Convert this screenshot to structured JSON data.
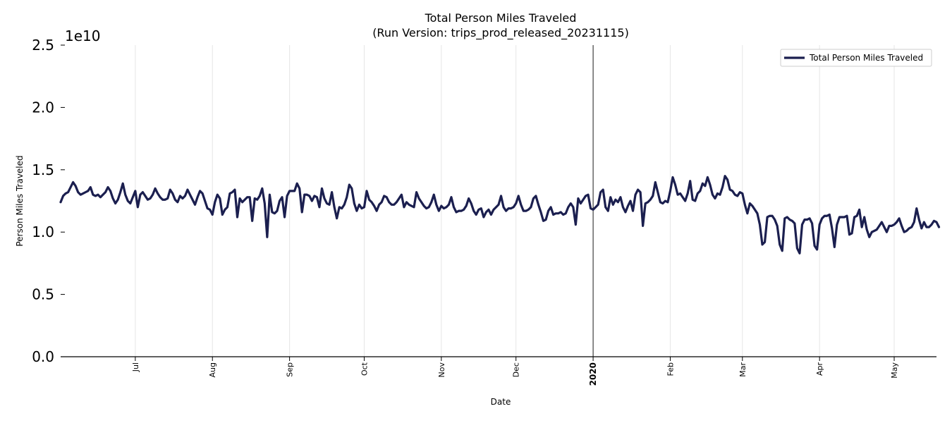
{
  "chart_data": {
    "type": "line",
    "title": "Total Person Miles Traveled",
    "subtitle": "(Run Version: trips_prod_released_20231115)",
    "xlabel": "Date",
    "ylabel": "Person Miles Traveled",
    "y_exponent_label": "1e10",
    "ylim": [
      0,
      2.5
    ],
    "yticks": [
      "0.0",
      "0.5",
      "1.0",
      "1.5",
      "2.0",
      "2.5"
    ],
    "xlim_days": [
      0,
      352
    ],
    "xticks": [
      {
        "label": "Jul",
        "day": 30
      },
      {
        "label": "Aug",
        "day": 61
      },
      {
        "label": "Sep",
        "day": 92
      },
      {
        "label": "Oct",
        "day": 122
      },
      {
        "label": "Nov",
        "day": 153
      },
      {
        "label": "Dec",
        "day": 183
      },
      {
        "label": "2020",
        "day": 214,
        "bold": true,
        "major": true
      },
      {
        "label": "Feb",
        "day": 245
      },
      {
        "label": "Mar",
        "day": 274
      },
      {
        "label": "Apr",
        "day": 305
      },
      {
        "label": "May",
        "day": 335
      }
    ],
    "grid": "vertical",
    "legend": {
      "placement": "top-right",
      "entries": [
        "Total Person Miles Traveled"
      ]
    },
    "series": [
      {
        "name": "Total Person Miles Traveled",
        "color": "#1b1f4f",
        "x_start_date": "2019-06-01",
        "step_days": 1,
        "values_1e10": [
          1.24,
          1.29,
          1.31,
          1.32,
          1.36,
          1.4,
          1.37,
          1.32,
          1.3,
          1.31,
          1.32,
          1.33,
          1.36,
          1.3,
          1.29,
          1.3,
          1.28,
          1.3,
          1.32,
          1.36,
          1.33,
          1.27,
          1.23,
          1.26,
          1.32,
          1.39,
          1.3,
          1.25,
          1.23,
          1.28,
          1.33,
          1.2,
          1.3,
          1.32,
          1.29,
          1.26,
          1.27,
          1.3,
          1.35,
          1.31,
          1.28,
          1.26,
          1.26,
          1.27,
          1.34,
          1.31,
          1.26,
          1.24,
          1.29,
          1.27,
          1.29,
          1.34,
          1.3,
          1.26,
          1.22,
          1.28,
          1.33,
          1.31,
          1.25,
          1.19,
          1.18,
          1.14,
          1.24,
          1.3,
          1.27,
          1.14,
          1.18,
          1.2,
          1.31,
          1.32,
          1.34,
          1.12,
          1.27,
          1.24,
          1.26,
          1.28,
          1.28,
          1.09,
          1.27,
          1.26,
          1.29,
          1.35,
          1.23,
          0.96,
          1.3,
          1.16,
          1.15,
          1.17,
          1.25,
          1.28,
          1.12,
          1.29,
          1.33,
          1.33,
          1.33,
          1.39,
          1.35,
          1.16,
          1.3,
          1.3,
          1.29,
          1.25,
          1.29,
          1.28,
          1.2,
          1.35,
          1.27,
          1.23,
          1.22,
          1.32,
          1.2,
          1.11,
          1.2,
          1.19,
          1.22,
          1.28,
          1.38,
          1.35,
          1.23,
          1.17,
          1.22,
          1.19,
          1.2,
          1.33,
          1.26,
          1.24,
          1.21,
          1.17,
          1.22,
          1.24,
          1.29,
          1.28,
          1.24,
          1.22,
          1.22,
          1.24,
          1.27,
          1.3,
          1.2,
          1.24,
          1.22,
          1.21,
          1.2,
          1.32,
          1.27,
          1.24,
          1.21,
          1.19,
          1.2,
          1.24,
          1.3,
          1.22,
          1.17,
          1.21,
          1.19,
          1.2,
          1.22,
          1.28,
          1.2,
          1.16,
          1.17,
          1.17,
          1.18,
          1.21,
          1.27,
          1.23,
          1.17,
          1.14,
          1.18,
          1.19,
          1.12,
          1.16,
          1.18,
          1.14,
          1.18,
          1.2,
          1.22,
          1.29,
          1.2,
          1.17,
          1.19,
          1.19,
          1.2,
          1.23,
          1.29,
          1.22,
          1.17,
          1.17,
          1.18,
          1.2,
          1.27,
          1.29,
          1.22,
          1.16,
          1.09,
          1.1,
          1.17,
          1.2,
          1.14,
          1.15,
          1.15,
          1.16,
          1.14,
          1.15,
          1.2,
          1.23,
          1.2,
          1.06,
          1.27,
          1.23,
          1.26,
          1.29,
          1.3,
          1.19,
          1.18,
          1.2,
          1.22,
          1.32,
          1.34,
          1.2,
          1.17,
          1.28,
          1.22,
          1.26,
          1.24,
          1.28,
          1.2,
          1.16,
          1.21,
          1.25,
          1.17,
          1.3,
          1.34,
          1.32,
          1.05,
          1.23,
          1.24,
          1.26,
          1.29,
          1.4,
          1.32,
          1.24,
          1.23,
          1.25,
          1.24,
          1.33,
          1.44,
          1.38,
          1.3,
          1.31,
          1.28,
          1.25,
          1.31,
          1.41,
          1.26,
          1.25,
          1.31,
          1.33,
          1.39,
          1.37,
          1.44,
          1.38,
          1.3,
          1.27,
          1.31,
          1.3,
          1.36,
          1.45,
          1.42,
          1.34,
          1.33,
          1.3,
          1.29,
          1.32,
          1.31,
          1.22,
          1.15,
          1.23,
          1.21,
          1.18,
          1.15,
          1.06,
          0.9,
          0.92,
          1.12,
          1.13,
          1.13,
          1.1,
          1.05,
          0.9,
          0.85,
          1.11,
          1.12,
          1.1,
          1.09,
          1.07,
          0.87,
          0.83,
          1.06,
          1.1,
          1.1,
          1.11,
          1.07,
          0.89,
          0.86,
          1.06,
          1.11,
          1.13,
          1.13,
          1.14,
          1.03,
          0.88,
          1.06,
          1.12,
          1.12,
          1.12,
          1.13,
          0.98,
          0.99,
          1.12,
          1.13,
          1.18,
          1.04,
          1.12,
          1.02,
          0.96,
          1.0,
          1.01,
          1.02,
          1.05,
          1.08,
          1.04,
          1.0,
          1.05,
          1.05,
          1.06,
          1.08,
          1.11,
          1.05,
          1.0,
          1.01,
          1.03,
          1.04,
          1.08,
          1.19,
          1.1,
          1.03,
          1.08,
          1.04,
          1.04,
          1.06,
          1.09,
          1.08,
          1.04
        ]
      }
    ]
  }
}
